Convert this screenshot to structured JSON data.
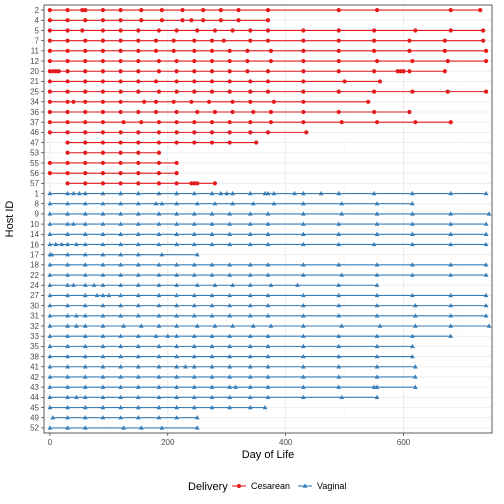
{
  "chart_data": {
    "type": "scatter",
    "xlabel": "Day of Life",
    "ylabel": "Host ID",
    "xlim": [
      -10,
      750
    ],
    "x_ticks": [
      0,
      200,
      400,
      600
    ],
    "x_tick_labels": [
      "0",
      "200",
      "400",
      "600"
    ],
    "grid": true,
    "legend": {
      "title": "Delivery",
      "position": "bottom"
    },
    "colors": {
      "Cesarean": "#E41A1C",
      "Vaginal": "#377EB8"
    },
    "markers": {
      "Cesarean": "circle",
      "Vaginal": "triangle"
    },
    "hosts": [
      {
        "id": "2",
        "group": "Cesarean",
        "days": [
          0,
          30,
          55,
          60,
          90,
          120,
          155,
          190,
          225,
          260,
          290,
          320,
          370,
          490,
          555,
          680,
          730
        ]
      },
      {
        "id": "4",
        "group": "Cesarean",
        "days": [
          0,
          30,
          60,
          90,
          120,
          155,
          190,
          225,
          240,
          260,
          290,
          320,
          370
        ]
      },
      {
        "id": "5",
        "group": "Cesarean",
        "days": [
          0,
          30,
          55,
          90,
          120,
          150,
          185,
          215,
          250,
          280,
          310,
          340,
          370,
          430,
          490,
          550,
          620,
          680,
          735
        ]
      },
      {
        "id": "7",
        "group": "Cesarean",
        "days": [
          0,
          30,
          60,
          90,
          120,
          150,
          180,
          210,
          245,
          275,
          295,
          340,
          370,
          430,
          490,
          550,
          610,
          670,
          735
        ]
      },
      {
        "id": "11",
        "group": "Cesarean",
        "days": [
          0,
          30,
          60,
          90,
          120,
          150,
          180,
          210,
          245,
          275,
          305,
          335,
          375,
          430,
          490,
          550,
          610,
          670,
          740
        ]
      },
      {
        "id": "12",
        "group": "Cesarean",
        "days": [
          0,
          30,
          60,
          90,
          120,
          150,
          185,
          215,
          245,
          275,
          305,
          335,
          375,
          430,
          490,
          555,
          615,
          675,
          740
        ]
      },
      {
        "id": "20",
        "group": "Cesarean",
        "days": [
          0,
          5,
          10,
          15,
          30,
          60,
          90,
          120,
          150,
          185,
          215,
          245,
          275,
          305,
          335,
          370,
          430,
          490,
          550,
          590,
          595,
          600,
          610,
          670
        ]
      },
      {
        "id": "21",
        "group": "Cesarean",
        "days": [
          0,
          30,
          60,
          90,
          120,
          150,
          180,
          215,
          245,
          275,
          305,
          340,
          370,
          430,
          500,
          560
        ]
      },
      {
        "id": "25",
        "group": "Cesarean",
        "days": [
          0,
          30,
          60,
          90,
          120,
          150,
          185,
          215,
          245,
          275,
          305,
          340,
          370,
          430,
          490,
          550,
          615,
          675,
          740
        ]
      },
      {
        "id": "34",
        "group": "Cesarean",
        "days": [
          0,
          30,
          40,
          60,
          90,
          120,
          160,
          180,
          210,
          240,
          270,
          310,
          340,
          380,
          430,
          540
        ]
      },
      {
        "id": "36",
        "group": "Cesarean",
        "days": [
          0,
          30,
          60,
          90,
          120,
          150,
          180,
          215,
          250,
          280,
          310,
          345,
          375,
          430,
          490,
          550,
          610
        ]
      },
      {
        "id": "37",
        "group": "Cesarean",
        "days": [
          0,
          30,
          60,
          90,
          125,
          155,
          185,
          215,
          245,
          275,
          305,
          340,
          375,
          430,
          495,
          555,
          620,
          680
        ]
      },
      {
        "id": "46",
        "group": "Cesarean",
        "days": [
          0,
          30,
          60,
          90,
          120,
          150,
          185,
          215,
          245,
          275,
          305,
          340,
          370,
          435
        ]
      },
      {
        "id": "47",
        "group": "Cesarean",
        "days": [
          30,
          60,
          90,
          120,
          150,
          185,
          215,
          245,
          275,
          305,
          350
        ]
      },
      {
        "id": "53",
        "group": "Cesarean",
        "days": [
          30,
          60,
          90,
          120,
          150,
          185
        ]
      },
      {
        "id": "55",
        "group": "Cesarean",
        "days": [
          0,
          30,
          60,
          90,
          120,
          150,
          185,
          215
        ]
      },
      {
        "id": "56",
        "group": "Cesarean",
        "days": [
          0,
          30,
          60,
          90,
          120,
          150,
          185,
          215
        ]
      },
      {
        "id": "57",
        "group": "Cesarean",
        "days": [
          30,
          60,
          90,
          120,
          150,
          185,
          215,
          240,
          245,
          250,
          280
        ]
      },
      {
        "id": "1",
        "group": "Vaginal",
        "days": [
          0,
          30,
          40,
          50,
          60,
          90,
          120,
          150,
          185,
          215,
          245,
          275,
          290,
          300,
          310,
          340,
          365,
          370,
          380,
          415,
          430,
          460,
          490,
          550,
          615,
          680,
          740
        ]
      },
      {
        "id": "8",
        "group": "Vaginal",
        "days": [
          0,
          30,
          60,
          90,
          120,
          150,
          180,
          190,
          215,
          250,
          280,
          310,
          345,
          380,
          430,
          495,
          555,
          615
        ]
      },
      {
        "id": "9",
        "group": "Vaginal",
        "days": [
          0,
          30,
          60,
          90,
          120,
          150,
          185,
          215,
          245,
          275,
          305,
          340,
          370,
          430,
          495,
          555,
          615,
          680,
          745
        ]
      },
      {
        "id": "10",
        "group": "Vaginal",
        "days": [
          0,
          30,
          40,
          60,
          90,
          120,
          150,
          185,
          215,
          245,
          275,
          305,
          340,
          370,
          430,
          490,
          555,
          615,
          680,
          740
        ]
      },
      {
        "id": "14",
        "group": "Vaginal",
        "days": [
          0,
          30,
          60,
          90,
          120,
          150,
          185,
          215,
          245,
          275,
          305,
          340,
          370,
          430,
          490,
          555,
          615,
          680,
          740
        ]
      },
      {
        "id": "16",
        "group": "Vaginal",
        "days": [
          0,
          10,
          20,
          30,
          45,
          60,
          90,
          120,
          150,
          185,
          215,
          245,
          275,
          305,
          340,
          370,
          430,
          490,
          550,
          615,
          680,
          740
        ]
      },
      {
        "id": "17",
        "group": "Vaginal",
        "days": [
          0,
          3,
          30,
          60,
          90,
          120,
          150,
          190,
          250
        ]
      },
      {
        "id": "18",
        "group": "Vaginal",
        "days": [
          0,
          30,
          60,
          90,
          120,
          150,
          185,
          215,
          245,
          275,
          305,
          340,
          370,
          430,
          490,
          555,
          615,
          680,
          740
        ]
      },
      {
        "id": "22",
        "group": "Vaginal",
        "days": [
          0,
          30,
          60,
          90,
          120,
          150,
          185,
          215,
          245,
          275,
          305,
          340,
          370,
          430,
          495,
          555,
          615,
          680,
          740
        ]
      },
      {
        "id": "24",
        "group": "Vaginal",
        "days": [
          0,
          30,
          40,
          60,
          75,
          90,
          120,
          150,
          185,
          215,
          250,
          280,
          310,
          340,
          375,
          420,
          490,
          555
        ]
      },
      {
        "id": "27",
        "group": "Vaginal",
        "days": [
          0,
          30,
          60,
          80,
          90,
          100,
          120,
          150,
          185,
          215,
          245,
          275,
          305,
          340,
          370,
          430,
          490,
          555,
          615,
          680,
          740
        ]
      },
      {
        "id": "30",
        "group": "Vaginal",
        "days": [
          0,
          30,
          60,
          90,
          120,
          150,
          185,
          215,
          245,
          275,
          305,
          340,
          370,
          430,
          490,
          555,
          620,
          680,
          740
        ]
      },
      {
        "id": "31",
        "group": "Vaginal",
        "days": [
          0,
          30,
          45,
          60,
          90,
          120,
          150,
          185,
          215,
          245,
          275,
          305,
          340,
          370,
          430,
          490,
          555,
          620,
          680,
          740
        ]
      },
      {
        "id": "32",
        "group": "Vaginal",
        "days": [
          0,
          30,
          45,
          60,
          90,
          125,
          155,
          185,
          215,
          250,
          280,
          310,
          345,
          375,
          430,
          495,
          560,
          620,
          680,
          745
        ]
      },
      {
        "id": "33",
        "group": "Vaginal",
        "days": [
          0,
          30,
          60,
          90,
          120,
          150,
          180,
          200,
          215,
          245,
          275,
          305,
          340,
          370,
          430,
          490,
          555,
          615,
          680
        ]
      },
      {
        "id": "35",
        "group": "Vaginal",
        "days": [
          0,
          30,
          60,
          90,
          120,
          150,
          185,
          215,
          245,
          275,
          305,
          340,
          370,
          430,
          490,
          555,
          615
        ]
      },
      {
        "id": "38",
        "group": "Vaginal",
        "days": [
          0,
          30,
          60,
          90,
          120,
          150,
          185,
          215,
          245,
          275,
          305,
          340,
          370,
          430,
          490,
          555,
          615
        ]
      },
      {
        "id": "41",
        "group": "Vaginal",
        "days": [
          0,
          30,
          60,
          90,
          120,
          150,
          185,
          215,
          230,
          245,
          275,
          305,
          340,
          370,
          430,
          490,
          555,
          620
        ]
      },
      {
        "id": "42",
        "group": "Vaginal",
        "days": [
          0,
          30,
          60,
          90,
          120,
          150,
          185,
          215,
          245,
          275,
          305,
          340,
          370,
          430,
          490,
          555,
          620
        ]
      },
      {
        "id": "43",
        "group": "Vaginal",
        "days": [
          0,
          30,
          60,
          90,
          120,
          150,
          185,
          215,
          245,
          275,
          305,
          315,
          340,
          370,
          430,
          490,
          550,
          555,
          620
        ]
      },
      {
        "id": "44",
        "group": "Vaginal",
        "days": [
          0,
          30,
          45,
          60,
          90,
          120,
          150,
          185,
          215,
          245,
          275,
          305,
          340,
          370,
          430,
          495,
          555
        ]
      },
      {
        "id": "45",
        "group": "Vaginal",
        "days": [
          0,
          30,
          60,
          90,
          120,
          150,
          185,
          215,
          245,
          275,
          305,
          340,
          365
        ]
      },
      {
        "id": "49",
        "group": "Vaginal",
        "days": [
          5,
          30,
          60,
          90,
          120,
          150,
          185,
          215,
          250
        ]
      },
      {
        "id": "52",
        "group": "Vaginal",
        "days": [
          0,
          30,
          60,
          125,
          155,
          190,
          250
        ]
      }
    ]
  }
}
